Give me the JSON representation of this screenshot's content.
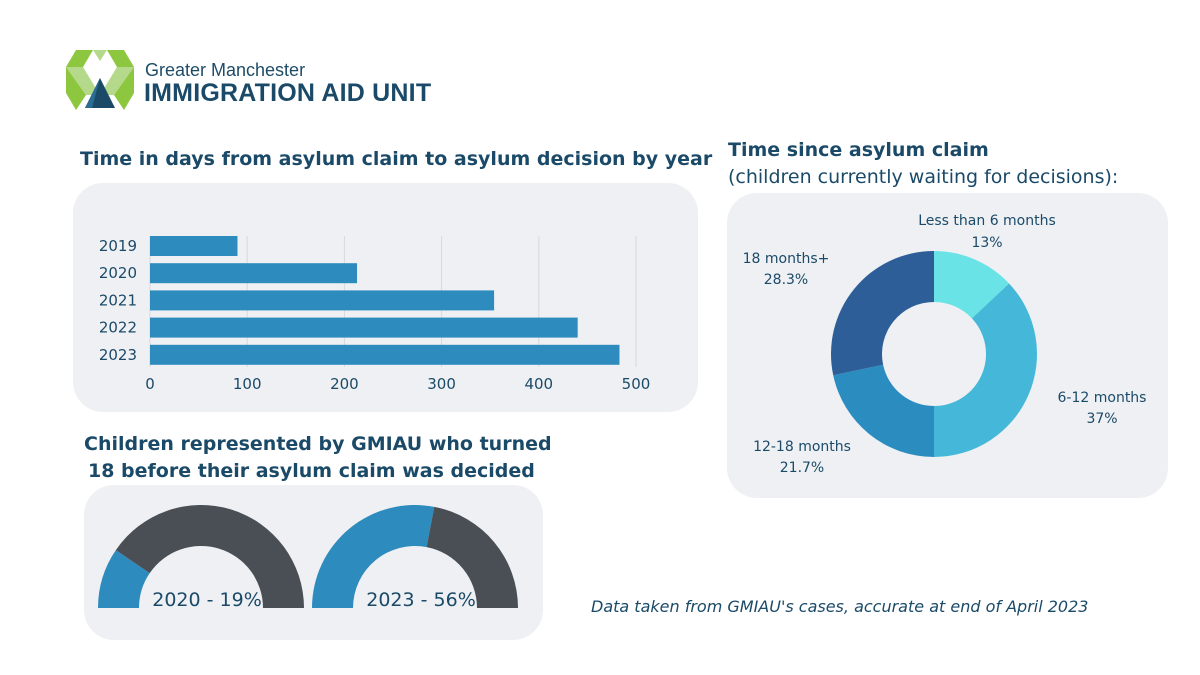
{
  "logo": {
    "line1": "Greater Manchester",
    "line2": "IMMIGRATION AID UNIT",
    "colors": [
      "#8dc63f",
      "#b5d98a",
      "#1b4a68",
      "#3a8fbe"
    ]
  },
  "colors": {
    "bar": "#2e8bbd",
    "grid": "#d6d9dd",
    "text": "#1b4a68",
    "gauge_fill": "#2e8bbd",
    "gauge_rest": "#4a4f56",
    "panel": "#eef0f3"
  },
  "chart_data": [
    {
      "type": "bar",
      "orientation": "horizontal",
      "title": "Time in days from asylum claim to asylum decision by year",
      "categories": [
        "2019",
        "2020",
        "2021",
        "2022",
        "2023"
      ],
      "values": [
        90,
        213,
        354,
        440,
        483
      ],
      "xlim": [
        0,
        500
      ],
      "xticks": [
        0,
        100,
        200,
        300,
        400,
        500
      ],
      "grid": true
    },
    {
      "type": "pie",
      "variant": "donut",
      "title": "Time since asylum claim",
      "subtitle": "(children currently waiting for decisions):",
      "slices": [
        {
          "label": "Less than 6 months",
          "value": 13,
          "value_label": "13%",
          "color": "#6ae3e6"
        },
        {
          "label": "6-12 months",
          "value": 37,
          "value_label": "37%",
          "color": "#45b8da"
        },
        {
          "label": "12-18 months",
          "value": 21.7,
          "value_label": "21.7%",
          "color": "#2b8cbf"
        },
        {
          "label": "18 months+",
          "value": 28.3,
          "value_label": "28.3%",
          "color": "#2d5e98"
        }
      ]
    },
    {
      "type": "gauge",
      "title_line1": "Children represented by GMIAU who turned",
      "title_line2": "18 before their asylum claim was decided",
      "gauges": [
        {
          "year": "2020",
          "value": 19,
          "label": "2020 - 19%"
        },
        {
          "year": "2023",
          "value": 56,
          "label": "2023 - 56%"
        }
      ]
    }
  ],
  "footnote": "Data taken from GMIAU's cases, accurate at end of April 2023"
}
